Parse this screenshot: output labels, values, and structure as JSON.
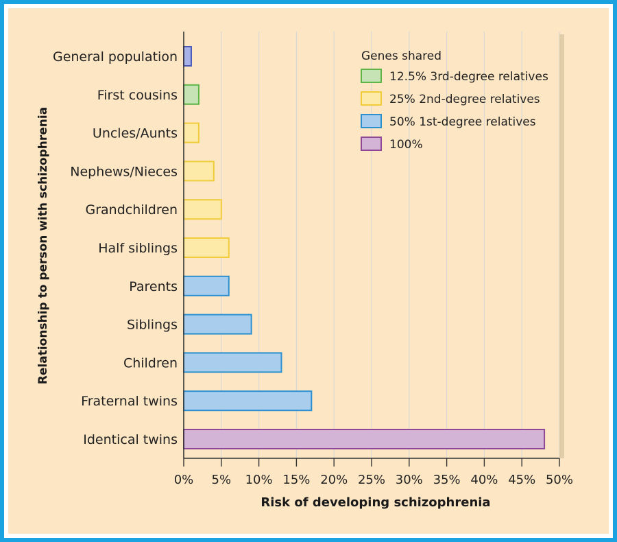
{
  "chart_data": {
    "type": "bar",
    "orientation": "horizontal",
    "xlabel": "Risk of developing schizophrenia",
    "ylabel": "Relationship to person with schizophrenia",
    "xlim": [
      0,
      50
    ],
    "xticks": [
      "0%",
      "5%",
      "10%",
      "15%",
      "20%",
      "25%",
      "30%",
      "35%",
      "40%",
      "45%",
      "50%"
    ],
    "grid": true,
    "legend_title": "Genes shared",
    "legend_position": "top-right",
    "legend": [
      {
        "key": "g12",
        "label": "12.5% 3rd-degree relatives",
        "fill": "#c5e3b5",
        "stroke": "#5fb548"
      },
      {
        "key": "g25",
        "label": "25% 2nd-degree relatives",
        "fill": "#fde9a8",
        "stroke": "#f0cc3a"
      },
      {
        "key": "g50",
        "label": "50% 1st-degree relatives",
        "fill": "#a9cdec",
        "stroke": "#2b8fd0"
      },
      {
        "key": "g100",
        "label": "100%",
        "fill": "#d3b3d6",
        "stroke": "#8e4896"
      }
    ],
    "categories": [
      "General population",
      "First cousins",
      "Uncles/Aunts",
      "Nephews/Nieces",
      "Grandchildren",
      "Half siblings",
      "Parents",
      "Siblings",
      "Children",
      "Fraternal twins",
      "Identical twins"
    ],
    "values": [
      1,
      2,
      2,
      4,
      5,
      6,
      6,
      9,
      13,
      17,
      48
    ],
    "groups": [
      "general",
      "g12",
      "g25",
      "g25",
      "g25",
      "g25",
      "g50",
      "g50",
      "g50",
      "g50",
      "g100"
    ],
    "group_colors": {
      "general": {
        "fill": "#a7b3e8",
        "stroke": "#4a58b8"
      },
      "g12": {
        "fill": "#c5e3b5",
        "stroke": "#5fb548"
      },
      "g25": {
        "fill": "#fde9a8",
        "stroke": "#f0cc3a"
      },
      "g50": {
        "fill": "#a9cdec",
        "stroke": "#2b8fd0"
      },
      "g100": {
        "fill": "#d3b3d6",
        "stroke": "#8e4896"
      }
    }
  }
}
